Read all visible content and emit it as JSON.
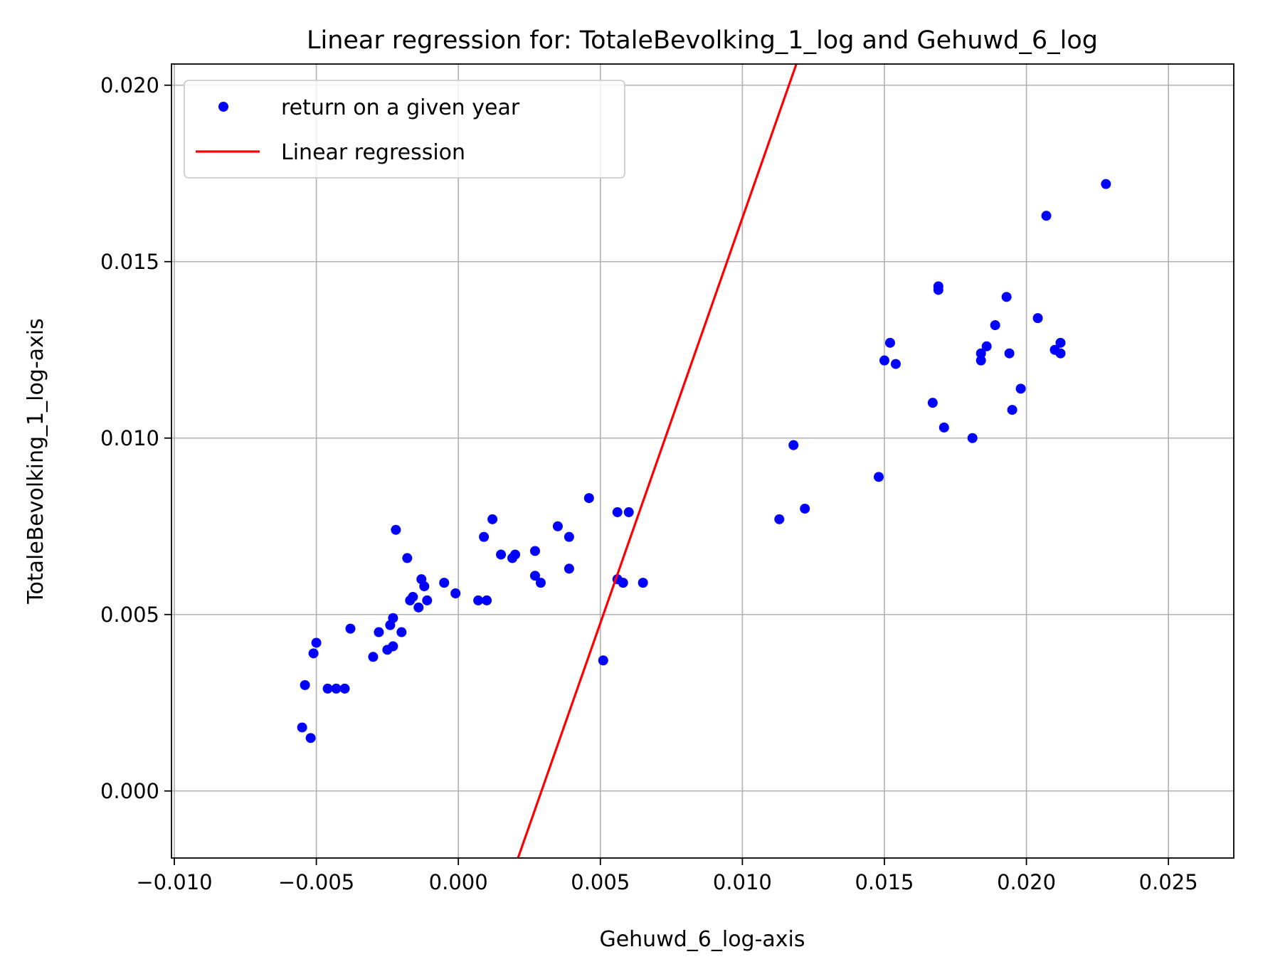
{
  "chart_data": {
    "type": "scatter",
    "title": "Linear regression for: TotaleBevolking_1_log and Gehuwd_6_log",
    "xlabel": "Gehuwd_6_log-axis",
    "ylabel": "TotaleBevolking_1_log-axis",
    "xlim": [
      -0.0101,
      0.0273
    ],
    "ylim": [
      -0.0019,
      0.0206
    ],
    "x_ticks": [
      -0.01,
      -0.005,
      0.0,
      0.005,
      0.01,
      0.015,
      0.02,
      0.025
    ],
    "x_tick_labels": [
      "−0.010",
      "−0.005",
      "0.000",
      "0.005",
      "0.010",
      "0.015",
      "0.020",
      "0.025"
    ],
    "y_ticks": [
      0.0,
      0.005,
      0.01,
      0.015,
      0.02
    ],
    "y_tick_labels": [
      "0.000",
      "0.005",
      "0.010",
      "0.015",
      "0.020"
    ],
    "grid": true,
    "legend_position": "top-left",
    "colors": {
      "points": "#0000ff",
      "line": "#ff0000",
      "grid": "#b0b0b0"
    },
    "series": [
      {
        "name": "return on a given year",
        "kind": "scatter",
        "x": [
          -0.0055,
          -0.0054,
          -0.0052,
          -0.0051,
          -0.005,
          -0.0046,
          -0.0043,
          -0.004,
          -0.0038,
          -0.003,
          -0.0028,
          -0.0025,
          -0.0024,
          -0.0023,
          -0.0023,
          -0.0022,
          -0.002,
          -0.0018,
          -0.0017,
          -0.0016,
          -0.0014,
          -0.0013,
          -0.0012,
          -0.0011,
          -0.0005,
          -0.0001,
          0.0007,
          0.0009,
          0.001,
          0.0012,
          0.0015,
          0.0019,
          0.002,
          0.0027,
          0.0027,
          0.0029,
          0.0035,
          0.0039,
          0.0039,
          0.0046,
          0.0051,
          0.0056,
          0.0056,
          0.0058,
          0.006,
          0.0065,
          0.0113,
          0.0118,
          0.0122,
          0.0148,
          0.015,
          0.0152,
          0.0154,
          0.0167,
          0.0169,
          0.0169,
          0.0171,
          0.0181,
          0.0184,
          0.0184,
          0.0186,
          0.0189,
          0.0193,
          0.0194,
          0.0195,
          0.0198,
          0.0204,
          0.0207,
          0.021,
          0.0212,
          0.0212,
          0.0228
        ],
        "y": [
          0.0018,
          0.003,
          0.0015,
          0.0039,
          0.0042,
          0.0029,
          0.0029,
          0.0029,
          0.0046,
          0.0038,
          0.0045,
          0.004,
          0.0047,
          0.0049,
          0.0041,
          0.0074,
          0.0045,
          0.0066,
          0.0054,
          0.0055,
          0.0052,
          0.006,
          0.0058,
          0.0054,
          0.0059,
          0.0056,
          0.0054,
          0.0072,
          0.0054,
          0.0077,
          0.0067,
          0.0066,
          0.0067,
          0.0061,
          0.0068,
          0.0059,
          0.0075,
          0.0063,
          0.0072,
          0.0083,
          0.0037,
          0.0079,
          0.006,
          0.0059,
          0.0079,
          0.0059,
          0.0077,
          0.0098,
          0.008,
          0.0089,
          0.0122,
          0.0127,
          0.0121,
          0.011,
          0.0142,
          0.0143,
          0.0103,
          0.01,
          0.0124,
          0.0122,
          0.0126,
          0.0132,
          0.014,
          0.0124,
          0.0108,
          0.0114,
          0.0134,
          0.0163,
          0.0125,
          0.0127,
          0.0124,
          0.0172
        ]
      },
      {
        "name": "Linear regression",
        "kind": "line",
        "x": [
          0.0021,
          0.0119
        ],
        "y": [
          -0.0019,
          0.0206
        ]
      }
    ]
  }
}
